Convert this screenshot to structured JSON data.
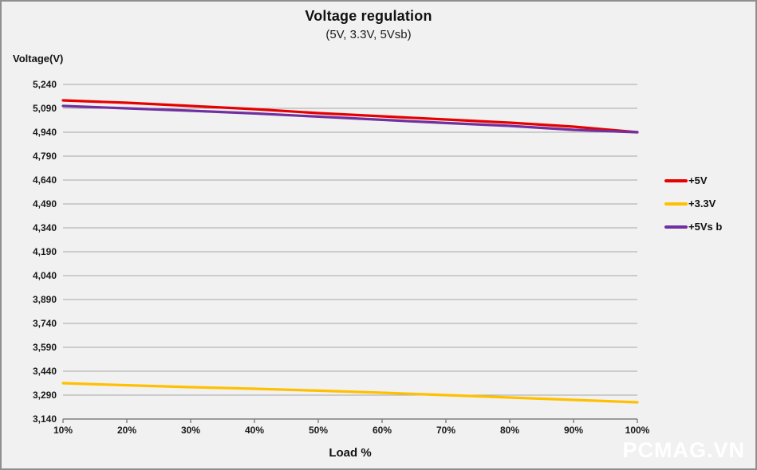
{
  "window": {
    "background_color": "#f1f1f1",
    "border_color": "#8f8f8f"
  },
  "chart_data": {
    "type": "line",
    "title": "Voltage regulation",
    "subtitle": "(5V, 3.3V, 5Vsb)",
    "y_axis_label": "Voltage(V)",
    "x_axis_label": "Load %",
    "x_tick_labels": [
      "10%",
      "20%",
      "30%",
      "40%",
      "50%",
      "60%",
      "70%",
      "80%",
      "90%",
      "100%"
    ],
    "y_ticks": [
      5240,
      5090,
      4940,
      4790,
      4640,
      4490,
      4340,
      4190,
      4040,
      3890,
      3740,
      3590,
      3440,
      3290,
      3140
    ],
    "y_tick_labels": [
      "5,240",
      "5,090",
      "4,940",
      "4,790",
      "4,640",
      "4,490",
      "4,340",
      "4,190",
      "4,040",
      "3,890",
      "3,740",
      "3,590",
      "3,440",
      "3,290",
      "3,140"
    ],
    "ylim": [
      3140,
      5240
    ],
    "grid": "horizontal-only",
    "gridline_color": "#a6a6a6",
    "axis_line_color": "#7f7f7f",
    "legend_position": "right",
    "series": [
      {
        "name": "+5V",
        "color": "#e60000",
        "values": [
          5140,
          5125,
          5105,
          5085,
          5060,
          5040,
          5020,
          5000,
          4975,
          4940
        ]
      },
      {
        "name": "+3.3V",
        "color": "#ffc000",
        "values": [
          3365,
          3352,
          3340,
          3330,
          3318,
          3305,
          3290,
          3275,
          3260,
          3245
        ]
      },
      {
        "name": "+5Vs b",
        "color": "#7030a0",
        "values": [
          5105,
          5090,
          5075,
          5058,
          5038,
          5018,
          4998,
          4980,
          4955,
          4940
        ]
      }
    ]
  },
  "watermark": {
    "text": "PCMAG.VN",
    "color": "#ffffff"
  }
}
